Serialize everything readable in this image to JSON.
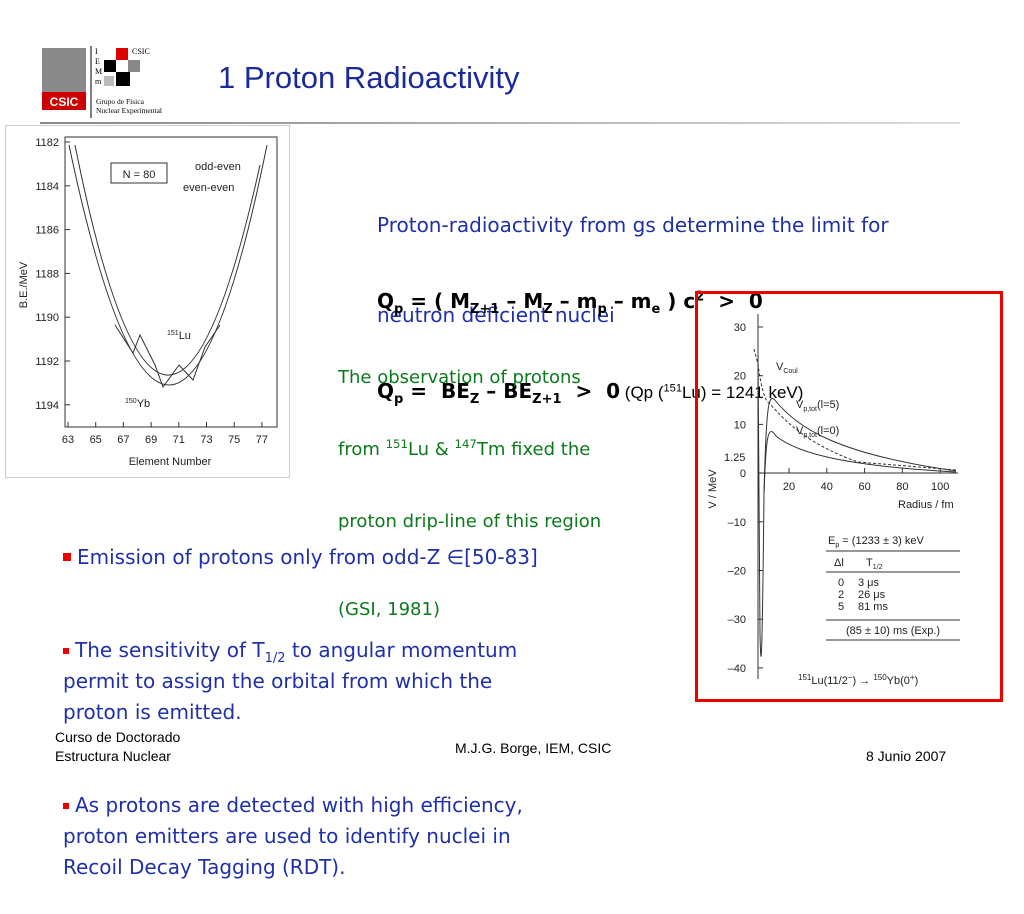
{
  "header": {
    "title": "1 Proton Radioactivity",
    "logo": {
      "left": "CSIC",
      "right": "CSIC",
      "letters": [
        "I",
        "E",
        "M",
        "m"
      ],
      "group": [
        "Grupo de Física",
        "Nuclear Experimental"
      ]
    }
  },
  "intro": [
    "Proton-radioactivity from gs determine the limit for",
    "neutron deficient nuclei"
  ],
  "formulas": [
    [
      "Q",
      "p",
      " = ( M",
      "Z+1",
      " – M",
      "Z",
      " – m",
      "p",
      " – m",
      "e",
      " ) c",
      "2",
      "  >  0"
    ],
    [
      "Q",
      "p",
      " =  BE",
      "Z",
      " – BE",
      "Z+1",
      "  >  0"
    ]
  ],
  "formula_note": [
    " (Qp (",
    "151",
    "Lu) = 1241 keV)"
  ],
  "observation": {
    "line1": "The observation of protons",
    "line2": [
      "from ",
      "151",
      "Lu & ",
      "147",
      "Tm fixed the"
    ],
    "line3": "proton drip-line of this region",
    "ref": "(GSI, 1981)"
  },
  "bullets": [
    {
      "first": [
        "Emission of protons only from odd-Z ∈[50-83]"
      ],
      "rest": []
    },
    {
      "first": [
        "The sensitivity of T",
        "1/2",
        " to angular momentum"
      ],
      "rest": [
        "permit to assign the orbital from which the",
        "proton is emitted."
      ]
    },
    {
      "first": [
        "As protons are detected with high efficiency,"
      ],
      "rest": [
        "proton emitters are used to identify nuclei in",
        "Recoil Decay Tagging (RDT)."
      ]
    }
  ],
  "figure_left": {
    "y_label": "B.E./MeV",
    "x_label": "Element Number",
    "yticks": [
      1182,
      1184,
      1186,
      1188,
      1190,
      1192,
      1194
    ],
    "xticks": [
      63,
      65,
      67,
      69,
      71,
      73,
      75,
      77
    ],
    "box": "N = 80",
    "legend": [
      "odd-even",
      "even-even"
    ],
    "lu": [
      "151",
      "Lu"
    ],
    "yb": [
      "150",
      "Yb"
    ]
  },
  "figure_right": {
    "y_label": "V / MeV",
    "x_label": "Radius / fm",
    "yticks": [
      "30",
      "20",
      "10",
      "0",
      "–10",
      "–20",
      "–30",
      "–40"
    ],
    "extra_tick": "1.25",
    "xticks": [
      20,
      40,
      60,
      80,
      100
    ],
    "vcoul": [
      "V",
      "Coul"
    ],
    "v5": [
      "V",
      "p,tot",
      "(l=5)"
    ],
    "v0": [
      "V",
      "p,tot",
      "(l=0)"
    ],
    "ep": [
      "E",
      "p",
      " = (1233 ± 3) keV"
    ],
    "head": [
      "Δl",
      "T",
      "1/2"
    ],
    "rows": [
      [
        "0",
        "3 μs"
      ],
      [
        "2",
        "26 μs"
      ],
      [
        "5",
        "81 ms"
      ]
    ],
    "exp": "(85 ± 10) ms (Exp.)",
    "decay": [
      "151",
      "Lu(11/2",
      "−",
      ") → ",
      "150",
      "Yb(0",
      "+",
      ")"
    ]
  },
  "footer": {
    "left": [
      "Curso de Doctorado",
      "Estructura Nuclear"
    ],
    "center": "M.J.G. Borge, IEM, CSIC",
    "right": "8 Junio 2007"
  }
}
